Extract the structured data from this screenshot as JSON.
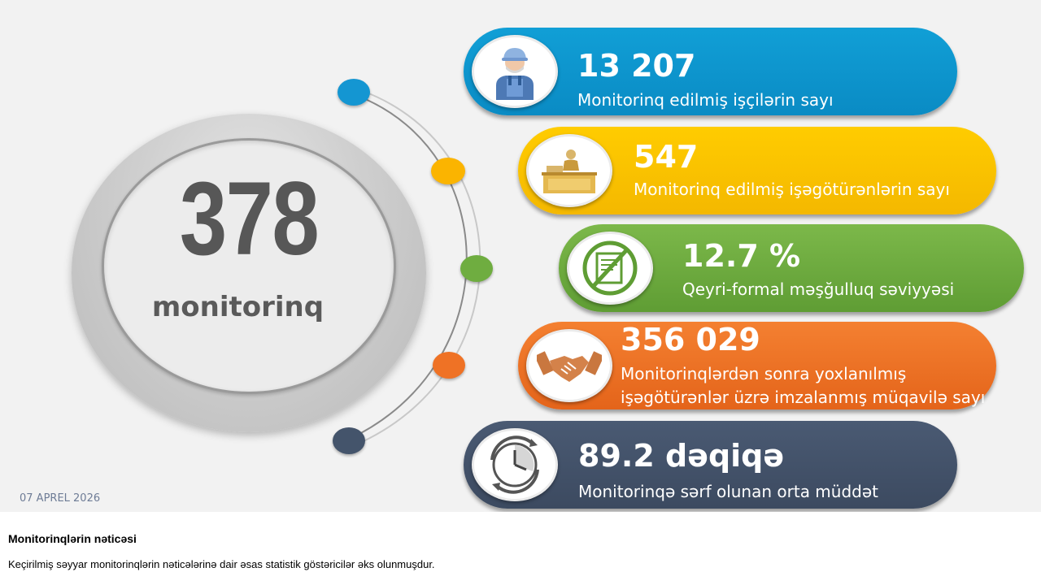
{
  "slide": {
    "main_value": "378",
    "main_label": "monitorinq",
    "date": "07 APREL 2026"
  },
  "stats": [
    {
      "value": "13 207",
      "label": "Monitorinq edilmiş işçilərin sayı",
      "label2": "",
      "color": "#0f9ad2",
      "icon": "worker-icon"
    },
    {
      "value": "547",
      "label": "Monitorinq edilmiş işəgötürənlərin sayı",
      "label2": "",
      "color": "#fbc400",
      "icon": "employer-desk-icon"
    },
    {
      "value": "12.7 %",
      "label": "Qeyri-formal məşğulluq səviyyəsi",
      "label2": "",
      "color": "#6fad40",
      "icon": "no-contract-icon"
    },
    {
      "value": "356 029",
      "label": "Monitorinqlərdən sonra yoxlanılmış",
      "label2": "işəgötürənlər üzrə imzalanmış müqavilə sayı",
      "color": "#ef7225",
      "icon": "handshake-icon"
    },
    {
      "value": "89.2 dəqiqə",
      "label": "Monitorinqə sərf olunan orta müddət",
      "label2": "",
      "color": "#44546b",
      "icon": "clock-icon"
    }
  ],
  "dot_colors": [
    "#1496d2",
    "#fbc400",
    "#6fad40",
    "#ef7225",
    "#44546b"
  ],
  "notes": {
    "title": "Monitorinqlərin  nəticəsi",
    "body": "Keçirilmiş səyyar monitorinqlərin nəticələrinə  dair əsas statistik göstəricilər əks olunmuşdur."
  }
}
